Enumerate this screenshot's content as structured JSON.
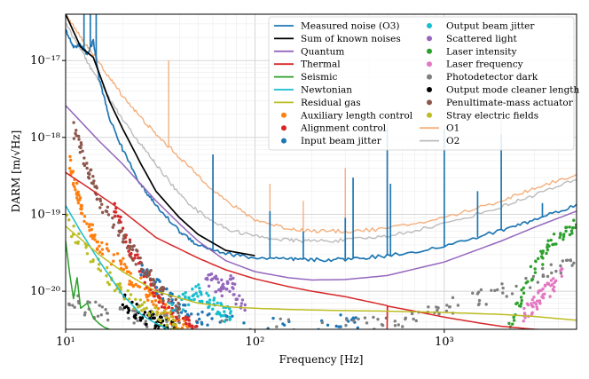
{
  "chart_data": {
    "type": "line",
    "title": "",
    "xlabel": "Frequency [Hz]",
    "ylabel": "DARM [m/√Hz]",
    "x_scale": "log",
    "y_scale": "log",
    "xlim": [
      10,
      5000
    ],
    "ylim": [
      3.2e-21,
      4e-17
    ],
    "grid": true,
    "legend_position": "top-right",
    "x_ticks": [
      {
        "value": 10,
        "label": "10¹"
      },
      {
        "value": 100,
        "label": "10²"
      },
      {
        "value": 1000,
        "label": "10³"
      }
    ],
    "y_ticks": [
      {
        "value": 1e-20,
        "label": "10⁻²⁰"
      },
      {
        "value": 1e-19,
        "label": "10⁻¹⁹"
      },
      {
        "value": 1e-18,
        "label": "10⁻¹⁸"
      },
      {
        "value": 1e-17,
        "label": "10⁻¹⁷"
      }
    ],
    "series": [
      {
        "name": "O1",
        "kind": "line",
        "color": "#f4b07e",
        "width": 1.4,
        "x": [
          10,
          12,
          14,
          17,
          20,
          25,
          30,
          40,
          50,
          70,
          100,
          150,
          200,
          300,
          500,
          1000,
          2000,
          3000,
          5000
        ],
        "y": [
          4e-17,
          2e-17,
          1.2e-17,
          6e-18,
          3.5e-18,
          1.8e-18,
          1.1e-18,
          5.5e-19,
          3.2e-19,
          1.5e-19,
          8.5e-20,
          6.5e-20,
          6.1e-20,
          6e-20,
          6.5e-20,
          9e-20,
          1.5e-19,
          2.2e-19,
          3.3e-19
        ],
        "spikes": [
          {
            "x": 35,
            "y": 1e-17
          },
          {
            "x": 60,
            "y": 6e-19
          },
          {
            "x": 120,
            "y": 2.5e-19
          },
          {
            "x": 180,
            "y": 1.5e-19
          },
          {
            "x": 300,
            "y": 4e-19
          },
          {
            "x": 500,
            "y": 1.6e-18
          },
          {
            "x": 1000,
            "y": 1.2e-18
          },
          {
            "x": 2000,
            "y": 2e-18
          }
        ]
      },
      {
        "name": "O2",
        "kind": "line",
        "color": "#bcbcbc",
        "width": 1.4,
        "x": [
          10,
          12,
          14,
          17,
          20,
          25,
          30,
          40,
          50,
          70,
          100,
          150,
          200,
          300,
          500,
          1000,
          2000,
          3000,
          5000
        ],
        "y": [
          3e-17,
          1.4e-17,
          7e-18,
          3.2e-18,
          1.7e-18,
          8e-19,
          4.5e-19,
          1.8e-19,
          1.1e-19,
          6.5e-20,
          5.2e-20,
          4.6e-20,
          4.5e-20,
          4.6e-20,
          5.2e-20,
          7.5e-20,
          1.25e-19,
          1.8e-19,
          2.8e-19
        ],
        "spikes": [
          {
            "x": 60,
            "y": 1.5e-19
          },
          {
            "x": 500,
            "y": 3e-19
          },
          {
            "x": 1000,
            "y": 2.5e-19
          }
        ]
      },
      {
        "name": "Measured noise (O3)",
        "kind": "line",
        "color": "#1f77b4",
        "width": 1.7,
        "x": [
          10,
          11,
          12,
          13,
          14,
          15,
          17,
          20,
          25,
          30,
          40,
          50,
          70,
          100,
          150,
          200,
          300,
          500,
          1000,
          2000,
          3000,
          5000
        ],
        "y": [
          2.5e-17,
          1.5e-17,
          1.6e-17,
          1.2e-17,
          1.8e-17,
          6e-18,
          1.8e-18,
          7e-19,
          2.4e-19,
          1.3e-19,
          6e-20,
          4e-20,
          3.1e-20,
          2.7e-20,
          2.6e-20,
          2.55e-20,
          2.6e-20,
          2.9e-20,
          3.8e-20,
          6.2e-20,
          8.5e-20,
          1.35e-19
        ],
        "spikes": [
          {
            "x": 12.5,
            "y": 4e-17
          },
          {
            "x": 13.5,
            "y": 4e-17
          },
          {
            "x": 14.5,
            "y": 4e-17
          },
          {
            "x": 60,
            "y": 6e-19
          },
          {
            "x": 120,
            "y": 1.1e-19
          },
          {
            "x": 180,
            "y": 6e-20
          },
          {
            "x": 300,
            "y": 9e-20
          },
          {
            "x": 330,
            "y": 3e-19
          },
          {
            "x": 500,
            "y": 1.3e-18
          },
          {
            "x": 520,
            "y": 2.5e-19
          },
          {
            "x": 1000,
            "y": 1.3e-18
          },
          {
            "x": 1500,
            "y": 2e-19
          },
          {
            "x": 2000,
            "y": 1.1e-18
          },
          {
            "x": 3300,
            "y": 1.4e-19
          }
        ]
      },
      {
        "name": "Sum of known noises",
        "kind": "line",
        "color": "#000000",
        "width": 1.7,
        "x": [
          10,
          12,
          14,
          17,
          20,
          25,
          30,
          35,
          40,
          50,
          70,
          100
        ],
        "y": [
          4e-17,
          1.5e-17,
          1.1e-17,
          3e-18,
          1.3e-18,
          4.5e-19,
          2e-19,
          1.3e-19,
          9e-20,
          5.5e-20,
          3.4e-20,
          2.9e-20
        ]
      },
      {
        "name": "Quantum",
        "kind": "line",
        "color": "#9467bd",
        "width": 1.5,
        "x": [
          10,
          15,
          20,
          30,
          40,
          50,
          70,
          100,
          150,
          200,
          300,
          500,
          1000,
          2000,
          3000,
          5000
        ],
        "y": [
          2.6e-18,
          9e-19,
          4.5e-19,
          1.5e-19,
          7.5e-20,
          4.5e-20,
          2.5e-20,
          1.8e-20,
          1.5e-20,
          1.4e-20,
          1.42e-20,
          1.6e-20,
          2.4e-20,
          4.5e-20,
          6.8e-20,
          1.1e-19
        ]
      },
      {
        "name": "Thermal",
        "kind": "line",
        "color": "#d62728",
        "width": 1.5,
        "x": [
          10,
          15,
          20,
          30,
          50,
          70,
          100,
          150,
          200,
          300,
          500,
          499,
          502,
          700,
          1000,
          1500,
          2000,
          3000,
          5000
        ],
        "y": [
          3.5e-19,
          1.8e-19,
          1.1e-19,
          5e-20,
          2.7e-20,
          1.9e-20,
          1.45e-20,
          1.15e-20,
          1e-20,
          8.5e-21,
          6.5e-21,
          3.2e-21,
          6.4e-21,
          5.5e-21,
          4.6e-21,
          3.9e-21,
          3.5e-21,
          3.2e-21,
          3e-21
        ]
      },
      {
        "name": "Seismic",
        "kind": "line",
        "color": "#2ca02c",
        "width": 1.5,
        "x": [
          10,
          10.5,
          11,
          11.5,
          12,
          13,
          14,
          15,
          16,
          17
        ],
        "y": [
          4.5e-20,
          1.7e-20,
          8e-21,
          1.5e-20,
          6e-21,
          7e-21,
          4.5e-21,
          3.8e-21,
          3.4e-21,
          3.2e-21
        ]
      },
      {
        "name": "Newtonian",
        "kind": "line",
        "color": "#17becf",
        "width": 1.5,
        "x": [
          10,
          12,
          15,
          20,
          25,
          30,
          35
        ],
        "y": [
          1.3e-19,
          6e-20,
          2.5e-20,
          9e-21,
          5e-21,
          3.8e-21,
          3.2e-21
        ]
      },
      {
        "name": "Residual gas",
        "kind": "line",
        "color": "#bcbd22",
        "width": 1.5,
        "x": [
          10,
          15,
          20,
          30,
          50,
          70,
          100,
          150,
          200,
          300,
          500,
          1000,
          2000,
          3000,
          5000
        ],
        "y": [
          7e-20,
          3e-20,
          1.8e-20,
          1e-20,
          7e-21,
          6.3e-21,
          6e-21,
          5.8e-21,
          5.7e-21,
          5.6e-21,
          5.5e-21,
          5.3e-21,
          5e-21,
          4.7e-21,
          4.2e-21
        ]
      }
    ],
    "scatter_series": [
      {
        "name": "Auxiliary length control",
        "color": "#ff7f0e",
        "ranges": [
          [
            10.5,
            5e-19
          ],
          [
            11,
            3e-19
          ],
          [
            11.5,
            2e-19
          ],
          [
            12,
            1.3e-19
          ],
          [
            13,
            8e-20
          ],
          [
            14,
            5.5e-20
          ],
          [
            15,
            4e-20
          ],
          [
            17,
            3e-20
          ],
          [
            20,
            2.2e-20
          ],
          [
            22,
            1.5e-20
          ],
          [
            25,
            1.2e-20
          ],
          [
            28,
            9e-21
          ],
          [
            30,
            7e-21
          ],
          [
            33,
            6e-21
          ],
          [
            35,
            5e-21
          ],
          [
            40,
            4e-21
          ],
          [
            45,
            3.5e-21
          ]
        ]
      },
      {
        "name": "Alignment control",
        "color": "#d62728",
        "ranges": [
          [
            18,
            1.3e-19
          ],
          [
            20,
            6e-20
          ],
          [
            22,
            3.5e-20
          ],
          [
            25,
            2e-20
          ],
          [
            28,
            1.2e-20
          ],
          [
            30,
            9e-21
          ],
          [
            35,
            6e-21
          ],
          [
            40,
            5e-21
          ],
          [
            45,
            4e-21
          ],
          [
            50,
            3.5e-21
          ]
        ]
      },
      {
        "name": "Input beam jitter",
        "color": "#1f77b4",
        "ranges": [
          [
            25,
            2e-20
          ],
          [
            30,
            1.2e-20
          ],
          [
            35,
            8e-21
          ],
          [
            40,
            6e-21
          ],
          [
            50,
            4.5e-21
          ],
          [
            60,
            4e-21
          ],
          [
            150,
            3.5e-21
          ],
          [
            300,
            4e-21
          ],
          [
            350,
            3.6e-21
          ]
        ]
      },
      {
        "name": "Output beam jitter",
        "color": "#17becf",
        "ranges": [
          [
            35,
            6e-21
          ],
          [
            40,
            7e-21
          ],
          [
            45,
            8e-21
          ],
          [
            50,
            1e-20
          ],
          [
            55,
            8e-21
          ],
          [
            60,
            7e-21
          ],
          [
            65,
            6e-21
          ],
          [
            70,
            5e-21
          ],
          [
            75,
            5.5e-21
          ]
        ]
      },
      {
        "name": "Scattered light",
        "color": "#9467bd",
        "ranges": [
          [
            55,
            1.5e-20
          ],
          [
            60,
            1.3e-20
          ],
          [
            65,
            1.2e-20
          ],
          [
            70,
            1e-20
          ],
          [
            75,
            1.4e-20
          ],
          [
            80,
            8e-21
          ],
          [
            90,
            7e-21
          ]
        ]
      },
      {
        "name": "Laser intensity",
        "color": "#2ca02c",
        "ranges": [
          [
            2200,
            3.3e-21
          ],
          [
            2500,
            7e-21
          ],
          [
            2800,
            1.5e-20
          ],
          [
            3200,
            2.5e-20
          ],
          [
            3500,
            3.5e-20
          ],
          [
            4000,
            5e-20
          ],
          [
            4500,
            6.5e-20
          ],
          [
            5000,
            8e-20
          ]
        ]
      },
      {
        "name": "Laser frequency",
        "color": "#e377c2",
        "ranges": [
          [
            2600,
            5e-21
          ],
          [
            2800,
            6e-21
          ],
          [
            3000,
            7e-21
          ],
          [
            3200,
            8e-21
          ],
          [
            3500,
            1e-20
          ],
          [
            3800,
            1.2e-20
          ],
          [
            4200,
            1.6e-20
          ]
        ]
      },
      {
        "name": "Photodetector dark",
        "color": "#7f7f7f",
        "ranges": [
          [
            10,
            9e-21
          ],
          [
            12,
            6.5e-21
          ],
          [
            15,
            5.5e-21
          ],
          [
            20,
            4.8e-21
          ],
          [
            25,
            4.5e-21
          ],
          [
            30,
            4.2e-21
          ],
          [
            35,
            4e-21
          ],
          [
            40,
            3.8e-21
          ],
          [
            300,
            3.3e-21
          ],
          [
            400,
            3.6e-21
          ],
          [
            500,
            4e-21
          ],
          [
            700,
            4.7e-21
          ],
          [
            1000,
            6e-21
          ],
          [
            1500,
            8e-21
          ],
          [
            2000,
            1e-20
          ],
          [
            3000,
            1.5e-20
          ],
          [
            4000,
            2e-20
          ],
          [
            5000,
            2.5e-20
          ]
        ]
      },
      {
        "name": "Output mode cleaner length",
        "color": "#000000",
        "ranges": [
          [
            20,
            8e-21
          ],
          [
            22,
            6e-21
          ],
          [
            25,
            5e-21
          ],
          [
            28,
            4.5e-21
          ],
          [
            30,
            4e-21
          ],
          [
            32,
            3.6e-21
          ],
          [
            35,
            3.3e-21
          ],
          [
            38,
            3.2e-21
          ]
        ]
      },
      {
        "name": "Penultimate-mass actuator",
        "color": "#8c564b",
        "ranges": [
          [
            11,
            1.3e-18
          ],
          [
            12,
            7e-19
          ],
          [
            13,
            4e-19
          ],
          [
            14,
            2.5e-19
          ],
          [
            15,
            1.5e-19
          ],
          [
            17,
            1e-19
          ],
          [
            20,
            5.5e-20
          ],
          [
            22,
            3.5e-20
          ],
          [
            25,
            2.3e-20
          ],
          [
            28,
            1.6e-20
          ],
          [
            30,
            1.2e-20
          ],
          [
            35,
            8e-21
          ],
          [
            40,
            6e-21
          ]
        ]
      },
      {
        "name": "Stray electric fields",
        "color": "#bcbd22",
        "ranges": [
          [
            10,
            8e-20
          ],
          [
            12,
            4.5e-20
          ],
          [
            15,
            2.2e-20
          ],
          [
            18,
            1.2e-20
          ],
          [
            20,
            9e-21
          ],
          [
            25,
            6e-21
          ],
          [
            30,
            5e-21
          ],
          [
            35,
            4.2e-21
          ],
          [
            40,
            3.8e-21
          ]
        ]
      }
    ],
    "legend": {
      "col1": [
        {
          "label": "Measured noise (O3)",
          "kind": "line",
          "color": "#1f77b4"
        },
        {
          "label": "Sum of known noises",
          "kind": "line",
          "color": "#000000"
        },
        {
          "label": "Quantum",
          "kind": "line",
          "color": "#9467bd"
        },
        {
          "label": "Thermal",
          "kind": "line",
          "color": "#d62728"
        },
        {
          "label": "Seismic",
          "kind": "line",
          "color": "#2ca02c"
        },
        {
          "label": "Newtonian",
          "kind": "line",
          "color": "#17becf"
        },
        {
          "label": "Residual gas",
          "kind": "line",
          "color": "#bcbd22"
        },
        {
          "label": "Auxiliary length control",
          "kind": "dot",
          "color": "#ff7f0e"
        },
        {
          "label": "Alignment control",
          "kind": "dot",
          "color": "#d62728"
        },
        {
          "label": "Input beam jitter",
          "kind": "dot",
          "color": "#1f77b4"
        }
      ],
      "col2": [
        {
          "label": "Output beam jitter",
          "kind": "dot",
          "color": "#17becf"
        },
        {
          "label": "Scattered light",
          "kind": "dot",
          "color": "#9467bd"
        },
        {
          "label": "Laser intensity",
          "kind": "dot",
          "color": "#2ca02c"
        },
        {
          "label": "Laser frequency",
          "kind": "dot",
          "color": "#e377c2"
        },
        {
          "label": "Photodetector dark",
          "kind": "dot",
          "color": "#7f7f7f"
        },
        {
          "label": "Output mode cleaner length",
          "kind": "dot",
          "color": "#000000"
        },
        {
          "label": "Penultimate-mass actuator",
          "kind": "dot",
          "color": "#8c564b"
        },
        {
          "label": "Stray electric fields",
          "kind": "dot",
          "color": "#bcbd22"
        },
        {
          "label": "O1",
          "kind": "line",
          "color": "#f4b07e"
        },
        {
          "label": "O2",
          "kind": "line",
          "color": "#bcbcbc"
        }
      ]
    }
  }
}
